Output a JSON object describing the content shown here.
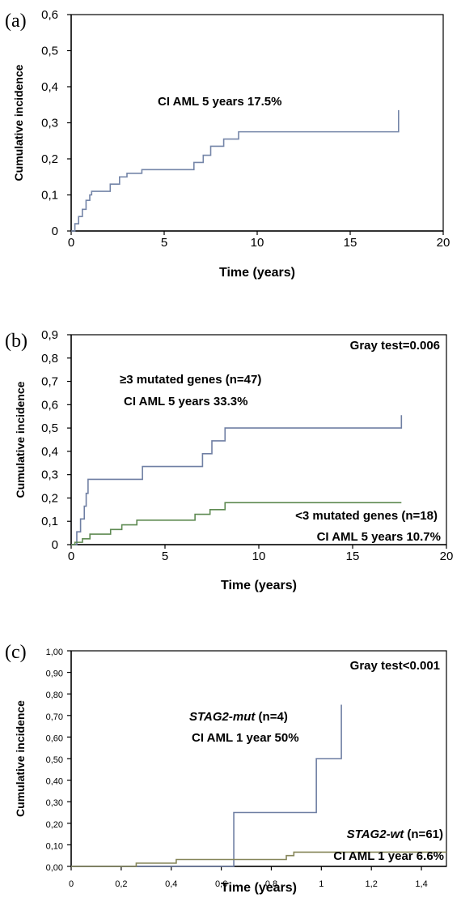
{
  "chart_data": [
    {
      "panel": "(a)",
      "type": "line",
      "xlabel": "Time (years)",
      "ylabel": "Cumulative incidence",
      "xlim": [
        0,
        20
      ],
      "ylim": [
        0,
        0.6
      ],
      "xticks": [
        "0",
        "5",
        "10",
        "15",
        "20"
      ],
      "yticks": [
        "0",
        "0,1",
        "0,2",
        "0,3",
        "0,4",
        "0,5",
        "0,6"
      ],
      "annotations": [
        "CI AML 5 years 17.5%"
      ],
      "series": [
        {
          "color": "#7485a8",
          "step": true,
          "x": [
            0,
            0.2,
            0.4,
            0.6,
            0.8,
            1.0,
            1.1,
            2.1,
            2.6,
            3.0,
            3.8,
            6.6,
            7.1,
            7.5,
            8.2,
            9.0,
            17.6
          ],
          "y": [
            0,
            0.02,
            0.04,
            0.06,
            0.085,
            0.1,
            0.11,
            0.13,
            0.15,
            0.16,
            0.17,
            0.19,
            0.21,
            0.235,
            0.255,
            0.275,
            0.335
          ]
        }
      ]
    },
    {
      "panel": "(b)",
      "type": "line",
      "xlabel": "Time (years)",
      "ylabel": "Cumulative incidence",
      "xlim": [
        0,
        20
      ],
      "ylim": [
        0,
        0.9
      ],
      "xticks": [
        "0",
        "5",
        "10",
        "15",
        "20"
      ],
      "yticks": [
        "0",
        "0,1",
        "0,2",
        "0,3",
        "0,4",
        "0,5",
        "0,6",
        "0,7",
        "0,8",
        "0,9"
      ],
      "annotations": [
        "Gray test=0.006",
        "≥3 mutated genes (n=47)",
        "CI AML 5 years 33.3%",
        "<3 mutated genes (n=18)",
        "CI AML 5 years 10.7%"
      ],
      "series": [
        {
          "color": "#6f7fa3",
          "step": true,
          "x": [
            0,
            0.3,
            0.5,
            0.7,
            0.8,
            0.9,
            1.05,
            3.8,
            7.0,
            7.5,
            8.2,
            17.6
          ],
          "y": [
            0,
            0.055,
            0.11,
            0.165,
            0.22,
            0.28,
            0.28,
            0.335,
            0.39,
            0.445,
            0.5,
            0.555
          ]
        },
        {
          "color": "#5e8a52",
          "step": true,
          "x": [
            0,
            0.2,
            0.6,
            1.0,
            2.1,
            2.7,
            3.5,
            6.6,
            7.4,
            8.2,
            17.6
          ],
          "y": [
            0,
            0.01,
            0.025,
            0.045,
            0.065,
            0.085,
            0.105,
            0.13,
            0.15,
            0.18,
            0.18
          ]
        }
      ]
    },
    {
      "panel": "(c)",
      "type": "line",
      "xlabel": "Time (years)",
      "ylabel": "Cumulative incidence",
      "xlim": [
        0,
        1.5
      ],
      "ylim": [
        0,
        1.0
      ],
      "xticks": [
        "0",
        "0,2",
        "0,4",
        "0,6",
        "0,8",
        "1",
        "1,2",
        "1,4"
      ],
      "yticks": [
        "0,00",
        "0,10",
        "0,20",
        "0,30",
        "0,40",
        "0,50",
        "0,60",
        "0,70",
        "0,80",
        "0,90",
        "1,00"
      ],
      "annotations": [
        "Gray test<0.001",
        "STAG2-mut (n=4)",
        "CI AML 1 year 50%",
        "STAG2-wt (n=61)",
        "CI AML 1 year 6.6%"
      ],
      "series": [
        {
          "color": "#6f7fa3",
          "step": true,
          "x": [
            0,
            0.65,
            0.98,
            1.08
          ],
          "y": [
            0,
            0.25,
            0.5,
            0.75
          ]
        },
        {
          "color": "#86865a",
          "step": true,
          "x": [
            0,
            0.26,
            0.42,
            0.86,
            0.89,
            1.5
          ],
          "y": [
            0,
            0.015,
            0.032,
            0.05,
            0.066,
            0.066
          ]
        }
      ]
    }
  ]
}
